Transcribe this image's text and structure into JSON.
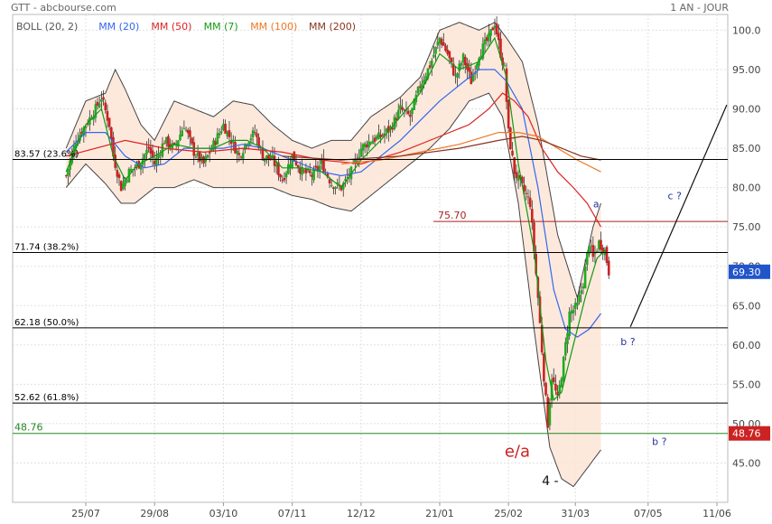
{
  "header": {
    "title": "GTT - abcbourse.com",
    "period": "1 AN - JOUR"
  },
  "legend": [
    {
      "label": "BOLL (20, 2)",
      "color": "#555555"
    },
    {
      "label": "MM (20)",
      "color": "#3366ee"
    },
    {
      "label": "MM (50)",
      "color": "#dd2222"
    },
    {
      "label": "MM (7)",
      "color": "#119911"
    },
    {
      "label": "MM (100)",
      "color": "#ee7722"
    },
    {
      "label": "MM (200)",
      "color": "#883322"
    }
  ],
  "chart_data": {
    "type": "candlestick",
    "ylim": [
      40,
      102
    ],
    "y_ticks": [
      "100.0",
      "95.00",
      "90.00",
      "85.00",
      "80.00",
      "75.00",
      "70.00",
      "65.00",
      "60.00",
      "55.00",
      "50.00",
      "45.00"
    ],
    "y_tick_values": [
      100,
      95,
      90,
      85,
      80,
      75,
      70,
      65,
      60,
      55,
      50,
      45
    ],
    "x_ticks": [
      "25/07",
      "29/08",
      "03/10",
      "07/11",
      "12/12",
      "21/01",
      "25/02",
      "31/03",
      "07/05",
      "11/06"
    ],
    "x_tick_days": [
      0,
      35,
      70,
      105,
      140,
      180,
      215,
      249,
      286,
      321
    ],
    "last_data_day": 274,
    "last_price": {
      "label": "69.30",
      "value": 69.3,
      "color": "#2255cc"
    },
    "support_label": {
      "label": "48.76",
      "value": 48.76,
      "color": "#cc2222"
    },
    "levels": [
      {
        "label": "83.57  (23.6%)",
        "value": 83.57,
        "color": "#000000"
      },
      {
        "label": "71.74  (38.2%)",
        "value": 71.74,
        "color": "#000000"
      },
      {
        "label": "62.18  (50.0%)",
        "value": 62.18,
        "color": "#000000"
      },
      {
        "label": "52.62  (61.8%)",
        "value": 52.62,
        "color": "#000000"
      },
      {
        "label": "48.76",
        "value": 48.76,
        "color": "#228822"
      },
      {
        "label": "75.70",
        "value": 75.7,
        "color": "#aa2222"
      }
    ],
    "annotations": [
      {
        "text": "a",
        "day": 258,
        "value": 77.5,
        "color": "#223399"
      },
      {
        "text": "c ?",
        "day": 296,
        "value": 78.5,
        "color": "#223399"
      },
      {
        "text": "b ?",
        "day": 272,
        "value": 60.0,
        "color": "#223399"
      },
      {
        "text": "b ?",
        "day": 288,
        "value": 47.3,
        "color": "#223399"
      },
      {
        "text": "e/a",
        "day": 213,
        "value": 45.8,
        "color": "#cc2222"
      },
      {
        "text": "4 -",
        "day": 232,
        "value": 42.2,
        "color": "#111111"
      }
    ],
    "projection": [
      {
        "day": 277,
        "value": 62.3
      },
      {
        "day": 326,
        "value": 90.5
      }
    ],
    "close_series": [
      [
        -10,
        81.5
      ],
      [
        -5,
        86
      ],
      [
        0,
        88
      ],
      [
        5,
        90
      ],
      [
        8,
        91.5
      ],
      [
        12,
        88
      ],
      [
        14,
        84
      ],
      [
        18,
        80
      ],
      [
        22,
        82
      ],
      [
        27,
        83
      ],
      [
        32,
        85
      ],
      [
        35,
        83
      ],
      [
        40,
        86
      ],
      [
        45,
        85
      ],
      [
        50,
        88
      ],
      [
        55,
        84.5
      ],
      [
        60,
        83
      ],
      [
        65,
        85.5
      ],
      [
        70,
        88
      ],
      [
        74,
        86
      ],
      [
        78,
        84
      ],
      [
        82,
        86
      ],
      [
        86,
        87
      ],
      [
        90,
        84
      ],
      [
        95,
        83.5
      ],
      [
        100,
        81
      ],
      [
        105,
        84
      ],
      [
        110,
        82
      ],
      [
        115,
        81.5
      ],
      [
        120,
        83
      ],
      [
        125,
        80.5
      ],
      [
        130,
        80
      ],
      [
        135,
        82
      ],
      [
        140,
        85
      ],
      [
        145,
        86
      ],
      [
        150,
        86.5
      ],
      [
        155,
        87.5
      ],
      [
        160,
        90
      ],
      [
        165,
        89
      ],
      [
        170,
        93
      ],
      [
        175,
        95.5
      ],
      [
        180,
        99
      ],
      [
        184,
        97
      ],
      [
        188,
        94
      ],
      [
        192,
        96.5
      ],
      [
        196,
        93.5
      ],
      [
        200,
        97
      ],
      [
        205,
        99
      ],
      [
        208,
        101
      ],
      [
        211,
        97
      ],
      [
        213,
        95
      ],
      [
        215,
        87
      ],
      [
        218,
        82
      ],
      [
        222,
        80
      ],
      [
        226,
        78
      ],
      [
        230,
        66
      ],
      [
        233,
        56
      ],
      [
        235,
        50
      ],
      [
        237,
        56
      ],
      [
        240,
        53
      ],
      [
        243,
        58
      ],
      [
        246,
        64
      ],
      [
        250,
        65
      ],
      [
        253,
        68
      ],
      [
        256,
        73
      ],
      [
        258,
        71
      ],
      [
        261,
        73
      ],
      [
        264,
        72
      ],
      [
        266,
        69.3
      ]
    ],
    "bollinger_upper": [
      [
        -10,
        85
      ],
      [
        0,
        91
      ],
      [
        10,
        92
      ],
      [
        15,
        95
      ],
      [
        20,
        92.5
      ],
      [
        28,
        88
      ],
      [
        35,
        86
      ],
      [
        45,
        91
      ],
      [
        55,
        90
      ],
      [
        65,
        89
      ],
      [
        75,
        91
      ],
      [
        85,
        90.5
      ],
      [
        95,
        88
      ],
      [
        105,
        86
      ],
      [
        115,
        85
      ],
      [
        125,
        86
      ],
      [
        135,
        86
      ],
      [
        145,
        89
      ],
      [
        160,
        91.5
      ],
      [
        170,
        94
      ],
      [
        180,
        100
      ],
      [
        190,
        101
      ],
      [
        200,
        100
      ],
      [
        208,
        101
      ],
      [
        214,
        99
      ],
      [
        222,
        96
      ],
      [
        230,
        88
      ],
      [
        240,
        74
      ],
      [
        250,
        66
      ],
      [
        258,
        75
      ],
      [
        262,
        78
      ]
    ],
    "bollinger_lower": [
      [
        -10,
        80
      ],
      [
        0,
        83
      ],
      [
        10,
        80.5
      ],
      [
        18,
        78
      ],
      [
        25,
        78
      ],
      [
        35,
        80
      ],
      [
        45,
        80
      ],
      [
        55,
        81
      ],
      [
        65,
        80
      ],
      [
        75,
        80
      ],
      [
        85,
        80
      ],
      [
        95,
        80
      ],
      [
        105,
        79
      ],
      [
        115,
        78.5
      ],
      [
        125,
        77.5
      ],
      [
        135,
        77
      ],
      [
        145,
        79
      ],
      [
        160,
        82
      ],
      [
        175,
        85
      ],
      [
        185,
        87.5
      ],
      [
        195,
        91
      ],
      [
        205,
        92
      ],
      [
        212,
        89
      ],
      [
        220,
        78
      ],
      [
        228,
        62
      ],
      [
        236,
        47
      ],
      [
        242,
        43
      ],
      [
        248,
        42
      ],
      [
        254,
        44
      ],
      [
        260,
        46
      ],
      [
        266,
        48
      ],
      [
        270,
        51
      ]
    ],
    "ma_series": [
      {
        "name": "MM (20)",
        "color": "#3366ee",
        "points": [
          [
            -10,
            84.5
          ],
          [
            0,
            87
          ],
          [
            10,
            87
          ],
          [
            20,
            84
          ],
          [
            30,
            82.5
          ],
          [
            40,
            83
          ],
          [
            50,
            85
          ],
          [
            60,
            85
          ],
          [
            70,
            85
          ],
          [
            80,
            85.5
          ],
          [
            90,
            85
          ],
          [
            100,
            84
          ],
          [
            110,
            83
          ],
          [
            120,
            82
          ],
          [
            130,
            81.5
          ],
          [
            140,
            82
          ],
          [
            150,
            84
          ],
          [
            160,
            86
          ],
          [
            170,
            88.5
          ],
          [
            180,
            91
          ],
          [
            190,
            93
          ],
          [
            200,
            95
          ],
          [
            208,
            95
          ],
          [
            214,
            93.5
          ],
          [
            222,
            90
          ],
          [
            230,
            80
          ],
          [
            238,
            67
          ],
          [
            244,
            62
          ],
          [
            250,
            61
          ],
          [
            256,
            62
          ],
          [
            262,
            64
          ]
        ]
      },
      {
        "name": "MM (50)",
        "color": "#dd2222",
        "points": [
          [
            -10,
            84
          ],
          [
            20,
            86
          ],
          [
            40,
            85
          ],
          [
            60,
            84.5
          ],
          [
            80,
            85
          ],
          [
            100,
            84.5
          ],
          [
            120,
            83.5
          ],
          [
            140,
            83
          ],
          [
            160,
            84.5
          ],
          [
            180,
            86.5
          ],
          [
            195,
            88
          ],
          [
            205,
            90
          ],
          [
            212,
            92
          ],
          [
            218,
            91
          ],
          [
            225,
            89
          ],
          [
            232,
            85
          ],
          [
            240,
            82
          ],
          [
            248,
            80
          ],
          [
            255,
            78
          ],
          [
            262,
            75
          ]
        ]
      },
      {
        "name": "MM (7)",
        "color": "#119911",
        "points": [
          [
            -10,
            82
          ],
          [
            0,
            88
          ],
          [
            8,
            90
          ],
          [
            14,
            84
          ],
          [
            20,
            81
          ],
          [
            27,
            83
          ],
          [
            35,
            84
          ],
          [
            45,
            85.5
          ],
          [
            55,
            85
          ],
          [
            65,
            85
          ],
          [
            74,
            86
          ],
          [
            82,
            86
          ],
          [
            90,
            85
          ],
          [
            100,
            82.5
          ],
          [
            110,
            82.5
          ],
          [
            120,
            82
          ],
          [
            130,
            80
          ],
          [
            140,
            83.5
          ],
          [
            150,
            86
          ],
          [
            160,
            89
          ],
          [
            170,
            92
          ],
          [
            180,
            97
          ],
          [
            190,
            95
          ],
          [
            200,
            96
          ],
          [
            208,
            99
          ],
          [
            214,
            94
          ],
          [
            220,
            83
          ],
          [
            228,
            72
          ],
          [
            234,
            58
          ],
          [
            238,
            53
          ],
          [
            242,
            54
          ],
          [
            248,
            60
          ],
          [
            254,
            66
          ],
          [
            260,
            71
          ],
          [
            264,
            72
          ]
        ]
      },
      {
        "name": "MM (100)",
        "color": "#ee7722",
        "points": [
          [
            130,
            83
          ],
          [
            150,
            83.5
          ],
          [
            170,
            84.5
          ],
          [
            190,
            85.5
          ],
          [
            210,
            87
          ],
          [
            220,
            87
          ],
          [
            230,
            86.5
          ],
          [
            240,
            85
          ],
          [
            250,
            83.5
          ],
          [
            262,
            82
          ]
        ]
      },
      {
        "name": "MM (200)",
        "color": "#883322",
        "points": [
          [
            100,
            84
          ],
          [
            130,
            83.5
          ],
          [
            160,
            84
          ],
          [
            190,
            85
          ],
          [
            210,
            86
          ],
          [
            222,
            86.5
          ],
          [
            232,
            86
          ],
          [
            242,
            85
          ],
          [
            252,
            84
          ],
          [
            262,
            83.5
          ]
        ]
      }
    ]
  }
}
